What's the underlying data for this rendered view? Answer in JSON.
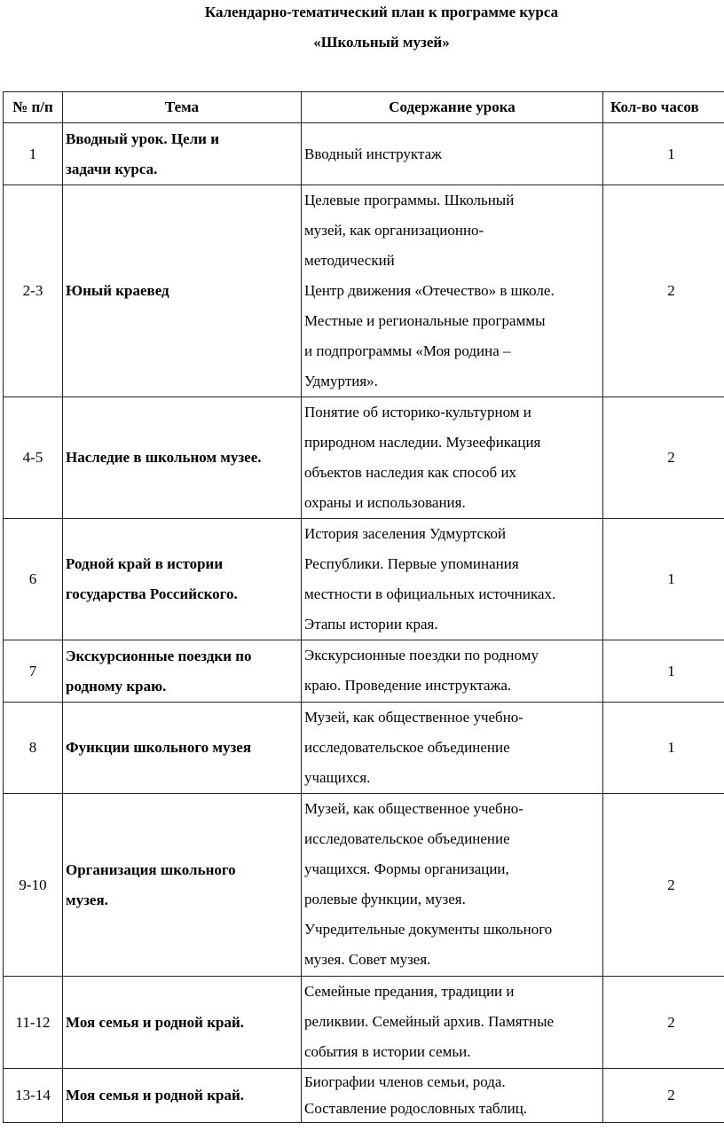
{
  "title": [
    "Календарно-тематический план к программе курса",
    "«Школьный музей»"
  ],
  "headers": [
    "№ п/п",
    "Тема",
    "Содержание урока",
    "Кол-во часов"
  ],
  "rows": [
    {
      "num": "1",
      "topic": [
        "Вводный урок. Цели и",
        "задачи курса."
      ],
      "content": [
        "Вводный инструктаж"
      ],
      "hours": "1"
    },
    {
      "num": "2-3",
      "topic": [
        "Юный краевед"
      ],
      "content": [
        "Целевые  программы.  Школьный",
        "музей, как организационно-",
        "методический",
        "Центр движения «Отечество» в школе.",
        "Местные и региональные  программы",
        "и  подпрограммы «Моя родина –",
        "Удмуртия»."
      ],
      "hours": "2"
    },
    {
      "num": "4-5",
      "topic": [
        "Наследие в школьном музее."
      ],
      "content": [
        "Понятие об историко-культурном и",
        "природном наследии. Музеефикация",
        "объектов наследия как способ их",
        "охраны и использования."
      ],
      "hours": "2"
    },
    {
      "num": "6",
      "topic": [
        "Родной край в истории",
        "государства Российского."
      ],
      "content": [
        "История  заселения Удмуртской",
        "Республики. Первые упоминания",
        "местности в официальных источниках.",
        "Этапы истории края."
      ],
      "hours": "1"
    },
    {
      "num": "7",
      "topic": [
        "Экскурсионные поездки по",
        "родному краю."
      ],
      "content": [
        "Экскурсионные поездки по родному",
        "краю. Проведение инструктажа."
      ],
      "hours": "1"
    },
    {
      "num": "8",
      "topic": [
        "Функции школьного музея"
      ],
      "content": [
        "Музей, как общественное учебно-",
        "исследовательское объединение",
        "учащихся."
      ],
      "hours": "1"
    },
    {
      "num": "9-10",
      "topic": [
        "Организация школьного",
        "музея."
      ],
      "content": [
        "Музей, как общественное учебно-",
        "исследовательское объединение",
        "учащихся. Формы организации,",
        "ролевые функции, музея.",
        "Учредительные документы школьного",
        "музея. Совет музея."
      ],
      "hours": "2"
    },
    {
      "num": "11-12",
      "topic": [
        "Моя семья и родной край."
      ],
      "content": [
        "Семейные предания, традиции и",
        "реликвии. Семейный архив. Памятные",
        "события в истории семьи."
      ],
      "hours": "2"
    },
    {
      "num": "13-14",
      "topic": [
        "Моя семья и родной край."
      ],
      "content": [
        "Биографии членов семьи, рода.",
        "Составление родословных  таблиц."
      ],
      "hours": "2"
    }
  ]
}
